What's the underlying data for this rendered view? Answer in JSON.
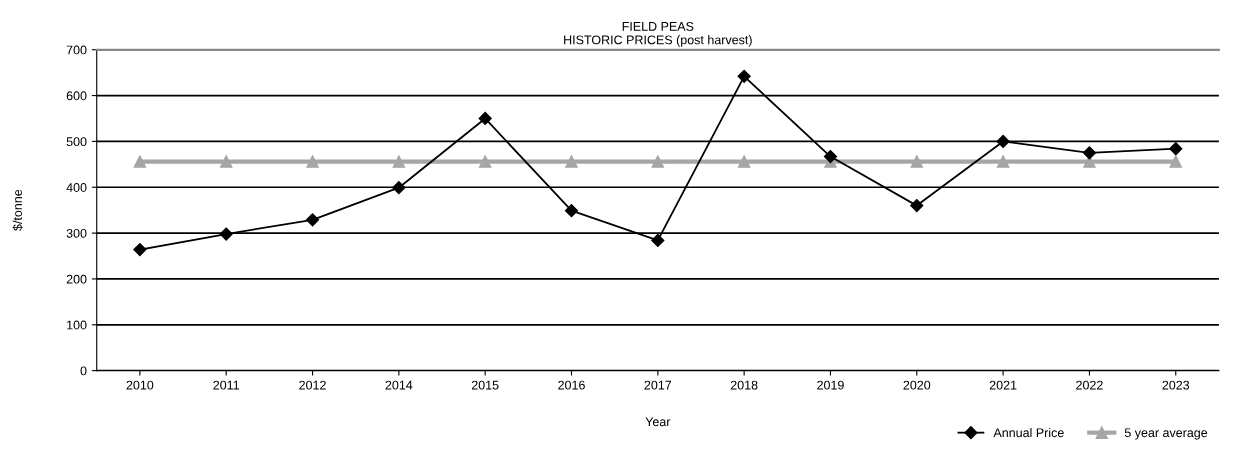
{
  "chart_data": {
    "type": "line",
    "title": "FIELD PEAS\nHISTORIC PRICES (post harvest)",
    "xlabel": "Year",
    "ylabel": "$/tonne",
    "categories": [
      "2010",
      "2011",
      "2012",
      "2014",
      "2015",
      "2016",
      "2017",
      "2018",
      "2019",
      "2020",
      "2021",
      "2022",
      "2023"
    ],
    "series": [
      {
        "name": "Annual Price",
        "color": "#000000",
        "marker": "diamond",
        "values": [
          264,
          298,
          329,
          399,
          550,
          349,
          284,
          642,
          467,
          360,
          500,
          475,
          484
        ]
      },
      {
        "name": "5 year average",
        "color": "#a6a6a6",
        "marker": "triangle",
        "values": [
          456,
          456,
          456,
          456,
          456,
          456,
          456,
          456,
          456,
          456,
          456,
          456,
          456
        ]
      }
    ],
    "ylim": [
      0,
      700
    ],
    "yticks": [
      0,
      100,
      200,
      300,
      400,
      500,
      600,
      700
    ],
    "grid": "y",
    "legend": "bottom right"
  }
}
